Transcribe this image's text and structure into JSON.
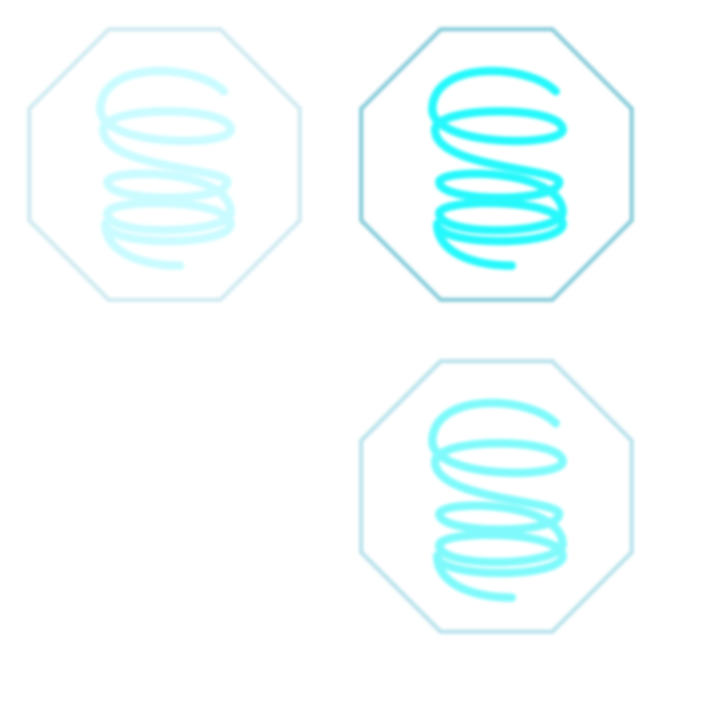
{
  "icon_name": "spring-coil-icon",
  "states": [
    {
      "state": "normal",
      "frame_color": "#cfeaf1",
      "coil_color": "#c9fbff"
    },
    {
      "state": "hover",
      "frame_color": "#86ccd9",
      "coil_color": "#25f8fb"
    },
    {
      "state": "pressed",
      "frame_color": "#b8e2eb",
      "coil_color": "#7ff9fb"
    }
  ]
}
